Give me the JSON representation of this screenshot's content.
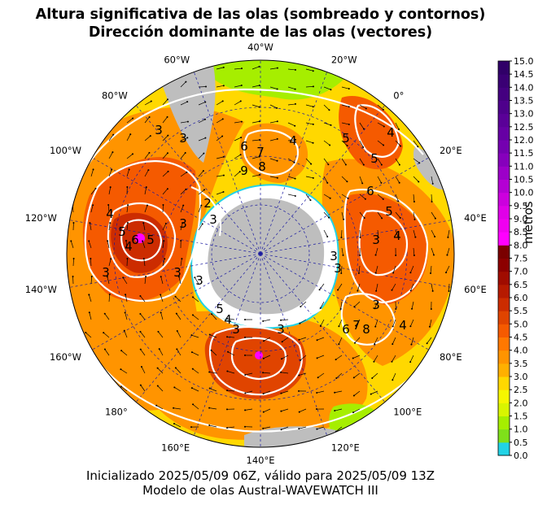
{
  "title_line1": "Altura significativa de las olas (sombreado y contornos)",
  "title_line2": "Dirección dominante de las olas (vectores)",
  "footer_line1": "Inicializado 2025/05/09 06Z, válido para 2025/05/09 13Z",
  "footer_line2": "Modelo de olas Austral-WAVEWATCH III",
  "colorbar": {
    "label": "metros",
    "ticks": [
      "0.0",
      "0.5",
      "1.0",
      "1.5",
      "2.0",
      "2.5",
      "3.0",
      "3.5",
      "4.0",
      "4.5",
      "5.0",
      "5.5",
      "6.0",
      "6.5",
      "7.0",
      "7.5",
      "8.0",
      "8.5",
      "9.0",
      "9.5",
      "10.0",
      "10.5",
      "11.0",
      "11.5",
      "12.0",
      "12.5",
      "13.0",
      "13.5",
      "14.0",
      "14.5",
      "15.0"
    ],
    "colors": [
      "#22d3e6",
      "#7fe01a",
      "#a6ee00",
      "#d9f500",
      "#f6f600",
      "#ffd800",
      "#ffb000",
      "#ff9400",
      "#ff7800",
      "#f55a00",
      "#e04400",
      "#cc2c00",
      "#b61a00",
      "#a00c00",
      "#8c0000",
      "#7a0000",
      "#ff00ff",
      "#f000f0",
      "#e000e8",
      "#cc00de",
      "#b400d4",
      "#9c00c8",
      "#8600bc",
      "#7400b0",
      "#6600a4",
      "#5a0098",
      "#4e008c",
      "#440080",
      "#3a0074",
      "#300068"
    ]
  },
  "map": {
    "longitude_labels": [
      "40°W",
      "20°W",
      "0°",
      "20°E",
      "40°E",
      "60°E",
      "80°E",
      "100°E",
      "120°E",
      "140°E",
      "160°E",
      "180°",
      "160°W",
      "140°W",
      "120°W",
      "100°W",
      "80°W",
      "60°W"
    ],
    "contour_labels": [
      "3",
      "3",
      "4",
      "4",
      "5",
      "5",
      "6",
      "6",
      "7",
      "8",
      "9",
      "2",
      "3",
      "4",
      "5",
      "6",
      "3",
      "4",
      "5",
      "3",
      "3",
      "3",
      "3",
      "3",
      "3",
      "4",
      "5",
      "6",
      "7",
      "8",
      "3",
      "4",
      "5",
      "4",
      "3",
      "3"
    ],
    "colors": {
      "land": "#bebebe",
      "ice": "#ffffff",
      "ocean_low": "#22d3e6",
      "contour": "#ffffff",
      "graticule": "#1a1aa0",
      "arrow": "#000000"
    }
  }
}
